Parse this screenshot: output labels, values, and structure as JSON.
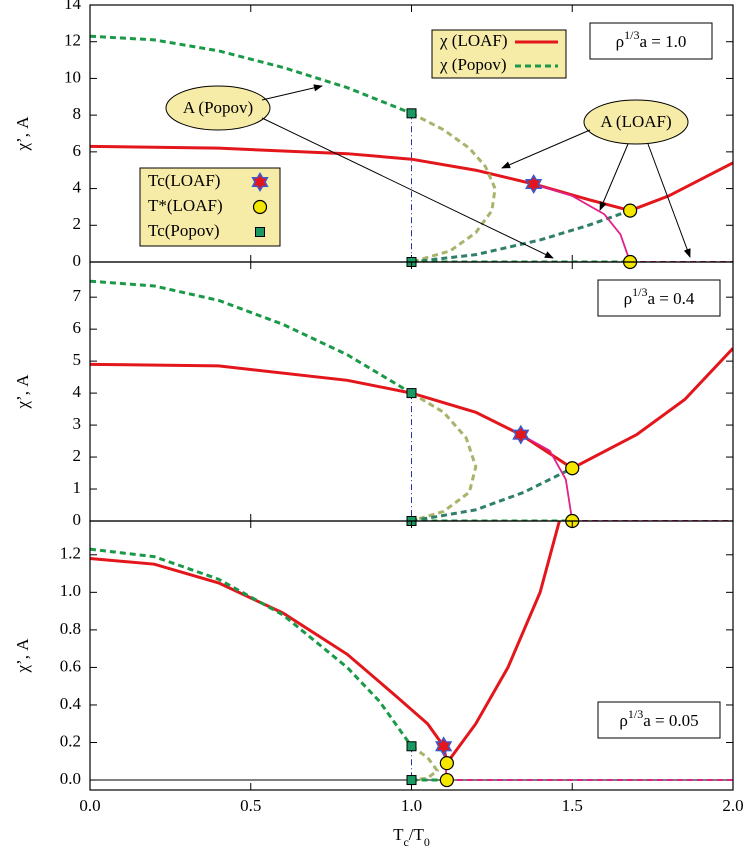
{
  "chart_data": [
    {
      "type": "line",
      "ylabel": [
        {
          "text": "χ’, A"
        }
      ],
      "ylim": [
        0,
        14
      ],
      "yticks": [
        0,
        2,
        4,
        6,
        8,
        10,
        12,
        14
      ],
      "xlim": [
        0,
        2
      ],
      "label": [
        {
          "text": "ρ"
        },
        {
          "text": "1/3",
          "shift": "super"
        },
        {
          "text": "a = 1.0"
        }
      ],
      "annotations": [
        "A (Popov)",
        "A (LOAF)"
      ],
      "series": [
        {
          "name": "χ (LOAF)",
          "color": "#e3161c",
          "dash": "none",
          "width": 3,
          "x": [
            0,
            0.4,
            0.8,
            1.0,
            1.2,
            1.38,
            1.55,
            1.68,
            1.8,
            2.0
          ],
          "values": [
            6.3,
            6.2,
            5.9,
            5.6,
            5.0,
            4.25,
            3.4,
            2.8,
            3.6,
            5.4
          ]
        },
        {
          "name": "χ (Popov)",
          "color": "#1a9a48",
          "dash": "6,4",
          "width": 3,
          "x": [
            0,
            0.2,
            0.4,
            0.6,
            0.8,
            1.0
          ],
          "values": [
            12.3,
            12.1,
            11.5,
            10.6,
            9.5,
            8.1
          ]
        },
        {
          "color": "#a8b46a",
          "dash": "6,4",
          "width": 3,
          "x": [
            1,
            1.1,
            1.18,
            1.23,
            1.26,
            1.25,
            1.2,
            1.12,
            1.0
          ],
          "values": [
            8.1,
            7.2,
            6.2,
            5.2,
            4.0,
            2.8,
            1.6,
            0.6,
            0
          ]
        },
        {
          "color": "#2f7f6a",
          "dash": "6,4",
          "width": 3,
          "x": [
            1,
            1.2,
            1.4,
            1.55,
            1.68
          ],
          "values": [
            0,
            0.4,
            1.2,
            2.0,
            2.8
          ]
        },
        {
          "color": "#e0218a",
          "dash": "none",
          "width": 1.8,
          "x": [
            1.38,
            1.5,
            1.6,
            1.65,
            1.68
          ],
          "values": [
            4.25,
            3.6,
            2.6,
            1.5,
            0
          ]
        },
        {
          "color": "#1a9a48",
          "dash": "6,4",
          "width": 3,
          "x": [
            1,
            1.68
          ],
          "values": [
            0,
            0
          ]
        },
        {
          "color": "#e0218a",
          "dash": "6,4",
          "width": 2,
          "x": [
            1.68,
            2
          ],
          "values": [
            0,
            0
          ]
        }
      ],
      "markers": [
        {
          "name": "Tc(LOAF)",
          "shape": "diamond",
          "color": "#e3161c",
          "x": [
            1.38
          ],
          "values": [
            4.25
          ]
        },
        {
          "name": "T*(LOAF)",
          "shape": "circle",
          "color": "#f5e600",
          "x": [
            1.68,
            1.68
          ],
          "values": [
            2.8,
            0
          ]
        },
        {
          "name": "Tc(Popov)",
          "shape": "square",
          "color": "#1a9a62",
          "x": [
            1,
            1
          ],
          "values": [
            8.1,
            0
          ]
        }
      ]
    },
    {
      "type": "line",
      "ylabel": [
        {
          "text": "χ’, A"
        }
      ],
      "ylim": [
        0,
        8.1
      ],
      "yticks": [
        0,
        1,
        2,
        3,
        4,
        5,
        6,
        7
      ],
      "xlim": [
        0,
        2
      ],
      "label": [
        {
          "text": "ρ"
        },
        {
          "text": "1/3",
          "shift": "super"
        },
        {
          "text": "a = 0.4"
        }
      ],
      "series": [
        {
          "color": "#e3161c",
          "dash": "none",
          "width": 3,
          "x": [
            0,
            0.4,
            0.8,
            1.0,
            1.2,
            1.34,
            1.5,
            1.7,
            1.85,
            2.0
          ],
          "values": [
            4.9,
            4.85,
            4.4,
            4.0,
            3.4,
            2.7,
            1.65,
            2.7,
            3.8,
            5.4
          ]
        },
        {
          "color": "#1a9a48",
          "dash": "6,4",
          "width": 3,
          "x": [
            0,
            0.2,
            0.4,
            0.6,
            0.8,
            1.0
          ],
          "values": [
            7.5,
            7.35,
            6.9,
            6.15,
            5.2,
            4.0
          ]
        },
        {
          "color": "#a8b46a",
          "dash": "6,4",
          "width": 3,
          "x": [
            1,
            1.1,
            1.17,
            1.2,
            1.18,
            1.1,
            1.0
          ],
          "values": [
            4.0,
            3.4,
            2.6,
            1.7,
            0.9,
            0.3,
            0
          ]
        },
        {
          "color": "#2f7f6a",
          "dash": "6,4",
          "width": 3,
          "x": [
            1,
            1.2,
            1.35,
            1.5
          ],
          "values": [
            0,
            0.35,
            0.9,
            1.65
          ]
        },
        {
          "color": "#e0218a",
          "dash": "none",
          "width": 1.8,
          "x": [
            1.34,
            1.43,
            1.48,
            1.5
          ],
          "values": [
            2.7,
            2.2,
            1.3,
            0
          ]
        },
        {
          "color": "#1a9a48",
          "dash": "6,4",
          "width": 3,
          "x": [
            1,
            1.5
          ],
          "values": [
            0,
            0
          ]
        },
        {
          "color": "#e0218a",
          "dash": "6,4",
          "width": 2,
          "x": [
            1.5,
            2
          ],
          "values": [
            0,
            0
          ]
        }
      ],
      "markers": [
        {
          "shape": "diamond",
          "color": "#e3161c",
          "x": [
            1.34
          ],
          "values": [
            2.7
          ]
        },
        {
          "shape": "circle",
          "color": "#f5e600",
          "x": [
            1.5,
            1.5
          ],
          "values": [
            1.65,
            0
          ]
        },
        {
          "shape": "square",
          "color": "#1a9a62",
          "x": [
            1,
            1
          ],
          "values": [
            4.0,
            0
          ]
        }
      ]
    },
    {
      "type": "line",
      "ylabel": [
        {
          "text": "χ’, A"
        }
      ],
      "xlabel": [
        {
          "text": "T"
        },
        {
          "text": "c",
          "shift": "sub"
        },
        {
          "text": "/T"
        },
        {
          "text": "0",
          "shift": "sub"
        }
      ],
      "ylim": [
        -0.053,
        1.38
      ],
      "yticks": [
        {
          "value": 0,
          "label": "0.0"
        },
        0.2,
        0.4,
        0.6,
        0.8,
        {
          "value": 1,
          "label": "1.0"
        },
        1.2
      ],
      "xlim": [
        0,
        2
      ],
      "xticks": [
        {
          "value": 0,
          "label": "0.0"
        },
        0.5,
        {
          "value": 1,
          "label": "1.0"
        },
        1.5,
        {
          "value": 2,
          "label": "2.0"
        }
      ],
      "label": [
        {
          "text": "ρ"
        },
        {
          "text": "1/3",
          "shift": "super"
        },
        {
          "text": "a = 0.05"
        }
      ],
      "series": [
        {
          "color": "#e3161c",
          "dash": "none",
          "width": 3,
          "x": [
            0,
            0.2,
            0.4,
            0.6,
            0.8,
            0.95,
            1.05,
            1.1,
            1.11,
            1.2,
            1.3,
            1.4,
            1.46
          ],
          "values": [
            1.18,
            1.15,
            1.05,
            0.89,
            0.67,
            0.45,
            0.3,
            0.18,
            0.09,
            0.3,
            0.6,
            1.0,
            1.38
          ]
        },
        {
          "color": "#1a9a48",
          "dash": "6,4",
          "width": 3,
          "x": [
            0,
            0.2,
            0.4,
            0.6,
            0.8,
            0.9,
            1.0
          ],
          "values": [
            1.23,
            1.19,
            1.07,
            0.88,
            0.6,
            0.42,
            0.18
          ]
        },
        {
          "color": "#a8b46a",
          "dash": "6,4",
          "width": 3,
          "x": [
            1,
            1.05,
            1.08,
            1.05,
            1.0
          ],
          "values": [
            0.18,
            0.12,
            0.05,
            0.01,
            0
          ]
        },
        {
          "color": "#e0218a",
          "dash": "none",
          "width": 1.8,
          "x": [
            1.1,
            1.11
          ],
          "values": [
            0.18,
            0
          ]
        },
        {
          "color": "#1a9a48",
          "dash": "6,4",
          "width": 3,
          "x": [
            1,
            1.11
          ],
          "values": [
            0,
            0
          ]
        },
        {
          "color": "#e0218a",
          "dash": "6,4",
          "width": 2,
          "x": [
            1.11,
            2
          ],
          "values": [
            0,
            0
          ]
        }
      ],
      "markers": [
        {
          "shape": "diamond",
          "color": "#e3161c",
          "x": [
            1.1
          ],
          "values": [
            0.18
          ]
        },
        {
          "shape": "circle",
          "color": "#f5e600",
          "x": [
            1.11,
            1.11
          ],
          "values": [
            0.09,
            0
          ]
        },
        {
          "shape": "square",
          "color": "#1a9a62",
          "x": [
            1,
            1
          ],
          "values": [
            0.18,
            0
          ]
        }
      ]
    }
  ]
}
